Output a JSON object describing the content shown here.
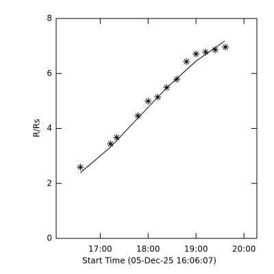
{
  "chart_data": {
    "type": "scatter",
    "xlabel": "Start Time (05-Dec-25 16:06:07)",
    "ylabel": "R/Rs",
    "x": [
      16.586,
      17.214,
      17.343,
      17.786,
      18.0,
      18.2,
      18.386,
      18.6,
      18.8,
      19.0,
      19.2,
      19.4,
      19.614
    ],
    "values": [
      2.59,
      3.44,
      3.67,
      4.46,
      4.99,
      5.14,
      5.49,
      5.79,
      6.43,
      6.71,
      6.78,
      6.86,
      6.96
    ],
    "fit": {
      "x": [
        16.586,
        17.2,
        17.8,
        18.4,
        19.0,
        19.6
      ],
      "values": [
        2.39,
        3.3,
        4.4,
        5.5,
        6.45,
        7.18
      ]
    },
    "color": "#000000",
    "xlim": [
      16.08,
      20.27
    ],
    "ylim": [
      0,
      8
    ],
    "xticks": [
      {
        "value": 17,
        "label": "17:00"
      },
      {
        "value": 18,
        "label": "18:00"
      },
      {
        "value": 19,
        "label": "19:00"
      },
      {
        "value": 20,
        "label": "20:00"
      }
    ],
    "yticks": [
      0,
      2,
      4,
      6,
      8
    ]
  }
}
